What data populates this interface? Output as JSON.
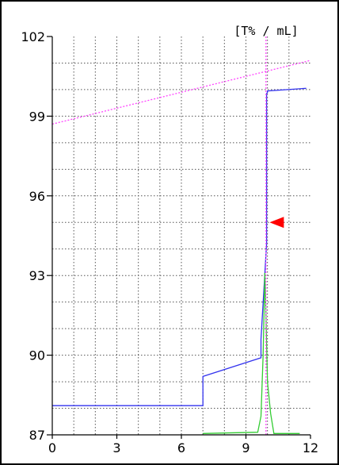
{
  "chart_data": {
    "type": "line",
    "title": "",
    "unit_label": "[T% / mL]",
    "xlim": [
      0,
      12
    ],
    "ylim": [
      87,
      102
    ],
    "x_ticks": [
      0,
      3,
      6,
      9,
      12
    ],
    "x_tick_labels": [
      "0",
      "3",
      "6",
      "9",
      "12"
    ],
    "y_ticks": [
      87,
      90,
      93,
      96,
      99,
      102
    ],
    "y_tick_labels": [
      "87",
      "90",
      "93",
      "96",
      "99",
      "102"
    ],
    "x_grid_step": 1,
    "y_grid_step": 1,
    "grid": true,
    "legend": "none",
    "series": [
      {
        "color": "#3333ee",
        "style": "solid",
        "x": [
          0,
          7.0,
          7.0,
          9.7,
          9.7,
          9.96,
          9.96,
          10.0,
          10.0,
          11.8
        ],
        "y": [
          88.1,
          88.1,
          89.2,
          89.9,
          90.6,
          94.2,
          99.85,
          99.9,
          99.95,
          100.05
        ]
      },
      {
        "color": "#33cc33",
        "style": "solid",
        "x": [
          7.0,
          9.55,
          9.7,
          9.8,
          9.88,
          9.93,
          10.0,
          10.15,
          10.3,
          11.5
        ],
        "y": [
          87.05,
          87.1,
          87.7,
          90.0,
          93.1,
          91.5,
          89.0,
          87.8,
          87.05,
          87.05
        ]
      },
      {
        "color": "#ff44ff",
        "style": "dotted",
        "x": [
          0,
          12
        ],
        "y": [
          98.7,
          101.1
        ]
      },
      {
        "color": "#ff44ff",
        "style": "dotted",
        "x": [
          9.93,
          9.93
        ],
        "y": [
          87,
          102
        ]
      }
    ],
    "marker": {
      "shape": "triangle-left",
      "color": "#ff0000",
      "x": 10.1,
      "y": 95.0
    }
  }
}
